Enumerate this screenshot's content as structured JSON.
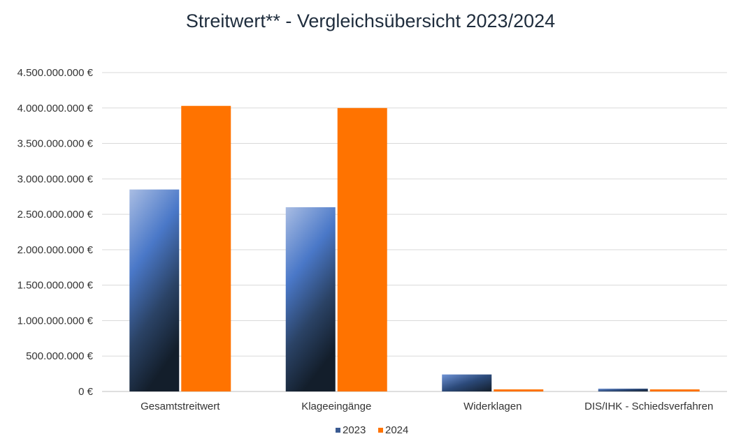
{
  "chart_data": {
    "type": "bar",
    "title": "Streitwert** - Vergleichsübersicht 2023/2024",
    "categories": [
      "Gesamtstreitwert",
      "Klageeingänge",
      "Widerklagen",
      "DIS/IHK - Schiedsverfahren"
    ],
    "series": [
      {
        "name": "2023",
        "values": [
          2850000000,
          2600000000,
          240000000,
          40000000
        ],
        "color": "#4472c4"
      },
      {
        "name": "2024",
        "values": [
          4030000000,
          4000000000,
          25000000,
          25000000
        ],
        "color": "#ff7300"
      }
    ],
    "yticks": [
      {
        "value": 0,
        "label": "0 €"
      },
      {
        "value": 500000000,
        "label": "500.000.000 €"
      },
      {
        "value": 1000000000,
        "label": "1.000.000.000 €"
      },
      {
        "value": 1500000000,
        "label": "1.500.000.000 €"
      },
      {
        "value": 2000000000,
        "label": "2.000.000.000 €"
      },
      {
        "value": 2500000000,
        "label": "2.500.000.000 €"
      },
      {
        "value": 3000000000,
        "label": "3.000.000.000 €"
      },
      {
        "value": 3500000000,
        "label": "3.500.000.000 €"
      },
      {
        "value": 4000000000,
        "label": "4.000.000.000 €"
      },
      {
        "value": 4500000000,
        "label": "4.500.000.000 €"
      }
    ],
    "ylim": [
      0,
      4500000000
    ],
    "xlabel": "",
    "ylabel": "",
    "grid": true,
    "legend_position": "bottom"
  }
}
